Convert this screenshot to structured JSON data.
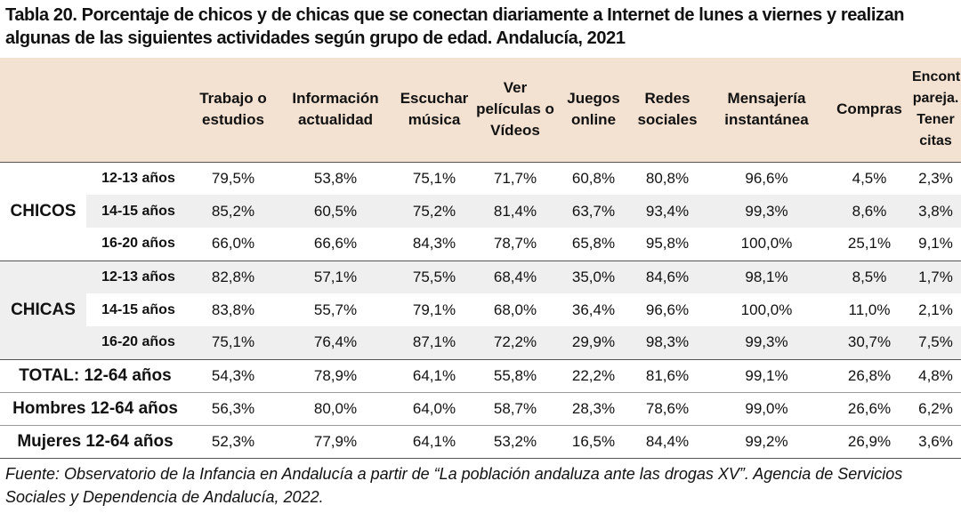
{
  "title": "Tabla 20. Porcentaje de chicos y de chicas que se conectan diariamente a Internet de lunes a viernes y realizan algunas de las siguientes actividades según grupo de edad. Andalucía, 2021",
  "columns": [
    "Trabajo o estudios",
    "Información actualidad",
    "Escuchar música",
    "Ver películas o Vídeos",
    "Juegos online",
    "Redes sociales",
    "Mensajería instantánea",
    "Compras",
    "Encontrar pareja. Tener citas"
  ],
  "groups": [
    {
      "name": "CHICOS",
      "rows": [
        {
          "age": "12-13 años",
          "values": [
            "79,5%",
            "53,8%",
            "75,1%",
            "71,7%",
            "60,8%",
            "80,8%",
            "96,6%",
            "4,5%",
            "2,3%"
          ]
        },
        {
          "age": "14-15 años",
          "values": [
            "85,2%",
            "60,5%",
            "75,2%",
            "81,4%",
            "63,7%",
            "93,4%",
            "99,3%",
            "8,6%",
            "3,8%"
          ]
        },
        {
          "age": "16-20 años",
          "values": [
            "66,0%",
            "66,6%",
            "84,3%",
            "78,7%",
            "65,8%",
            "95,8%",
            "100,0%",
            "25,1%",
            "9,1%"
          ]
        }
      ]
    },
    {
      "name": "CHICAS",
      "rows": [
        {
          "age": "12-13 años",
          "values": [
            "82,8%",
            "57,1%",
            "75,5%",
            "68,4%",
            "35,0%",
            "84,6%",
            "98,1%",
            "8,5%",
            "1,7%"
          ]
        },
        {
          "age": "14-15 años",
          "values": [
            "83,8%",
            "55,7%",
            "79,1%",
            "68,0%",
            "36,4%",
            "96,6%",
            "100,0%",
            "11,0%",
            "2,1%"
          ]
        },
        {
          "age": "16-20 años",
          "values": [
            "75,1%",
            "76,4%",
            "87,1%",
            "72,2%",
            "29,9%",
            "98,3%",
            "99,3%",
            "30,7%",
            "7,5%"
          ]
        }
      ]
    }
  ],
  "totals": [
    {
      "label": "TOTAL: 12-64 años",
      "values": [
        "54,3%",
        "78,9%",
        "64,1%",
        "55,8%",
        "22,2%",
        "81,6%",
        "99,1%",
        "26,8%",
        "4,8%"
      ]
    },
    {
      "label": "Hombres 12-64 años",
      "values": [
        "56,3%",
        "80,0%",
        "64,0%",
        "58,7%",
        "28,3%",
        "78,6%",
        "99,0%",
        "26,6%",
        "6,2%"
      ]
    },
    {
      "label": "Mujeres 12-64 años",
      "values": [
        "52,3%",
        "77,9%",
        "64,1%",
        "53,2%",
        "16,5%",
        "84,4%",
        "99,2%",
        "26,9%",
        "3,6%"
      ]
    }
  ],
  "source": "Fuente: Observatorio de la Infancia en Andalucía a partir de “La población andaluza ante las drogas XV”. Agencia de Servicios Sociales y Dependencia de Andalucía, 2022.",
  "colors": {
    "header_bg": "#f3e1d2",
    "alt_row_bg": "#efefef"
  }
}
